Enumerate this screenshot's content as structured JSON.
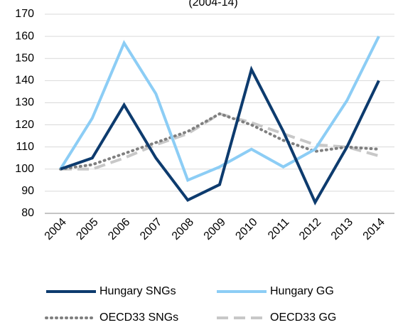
{
  "chart_data": {
    "type": "line",
    "title": "(2004-14)",
    "categories": [
      "2004",
      "2005",
      "2006",
      "2007",
      "2008",
      "2009",
      "2010",
      "2011",
      "2012",
      "2013",
      "2014"
    ],
    "series": [
      {
        "name": "Hungary SNGs",
        "color": "#0d3b6e",
        "style": "solid",
        "values": [
          100,
          105,
          129,
          105,
          86,
          93,
          145,
          117,
          85,
          110,
          140
        ]
      },
      {
        "name": "Hungary GG",
        "color": "#8ccdf5",
        "style": "solid",
        "values": [
          100,
          123,
          157,
          134,
          95,
          101,
          109,
          101,
          109,
          131,
          160
        ]
      },
      {
        "name": "OECD33 SNGs",
        "color": "#7f7f7f",
        "style": "dotted",
        "values": [
          100,
          102,
          107,
          112,
          117,
          125,
          120,
          113,
          108,
          110,
          109
        ]
      },
      {
        "name": "OECD33 GG",
        "color": "#c8c8c8",
        "style": "dashed",
        "values": [
          100,
          100,
          105,
          111,
          116,
          125,
          121,
          116,
          111,
          110,
          106
        ]
      }
    ],
    "ylim": [
      80,
      170
    ],
    "yticks": [
      80,
      90,
      100,
      110,
      120,
      130,
      140,
      150,
      160,
      170
    ],
    "grid": true
  }
}
